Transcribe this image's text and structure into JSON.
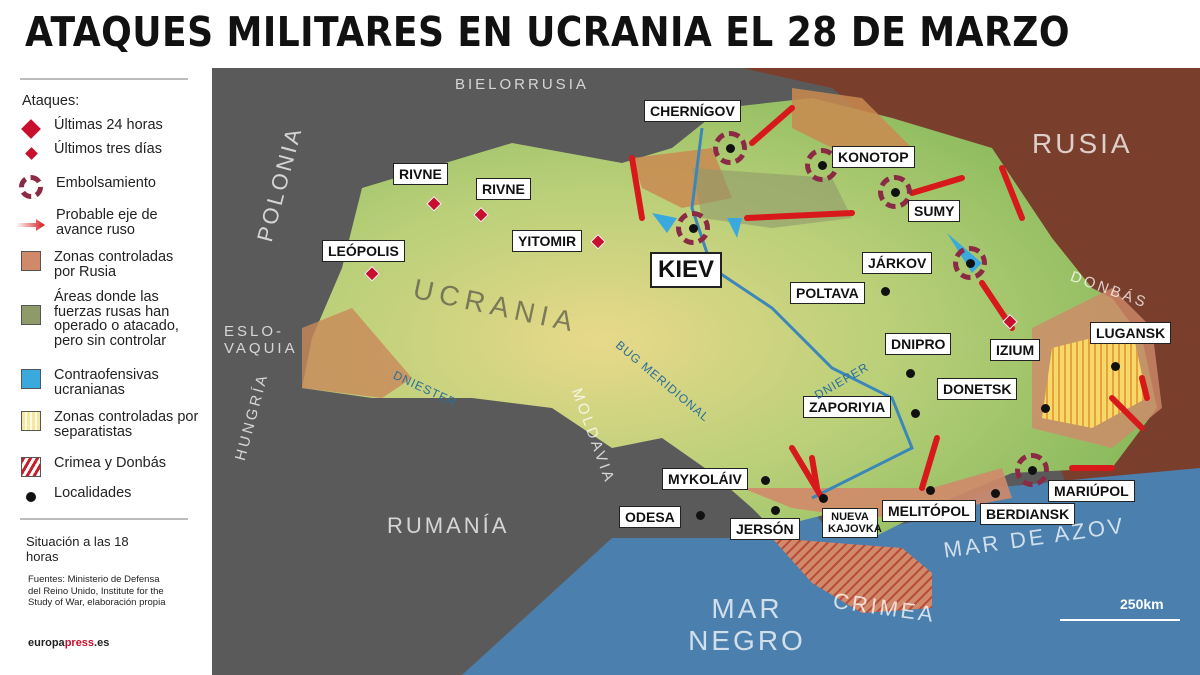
{
  "title": "ATAQUES MILITARES EN UCRANIA EL 28 DE MARZO",
  "legend": {
    "heading": "Ataques:",
    "items": [
      {
        "label": "Últimas 24 horas",
        "icon": "large-red-diamond"
      },
      {
        "label": "Últimos tres días",
        "icon": "small-red-diamond"
      },
      {
        "label": "Embolsamiento",
        "icon": "dashed-ring",
        "color": "#8a2a45"
      },
      {
        "label": "Probable eje de avance ruso",
        "icon": "red-arrow",
        "color": "#d7191c"
      },
      {
        "label": "Zonas controladas por Rusia",
        "color": "#d08a6a"
      },
      {
        "label": "Áreas donde las fuerzas rusas han operado o atacado, pero sin controlar",
        "color": "#8f9a6a"
      },
      {
        "label": "Contraofensivas ucranianas",
        "color": "#3aa9de"
      },
      {
        "label": "Zonas controladas por separatistas",
        "color": "#f6e7a0"
      },
      {
        "label": "Crimea y Donbás",
        "color": "#c8202a"
      },
      {
        "label": "Localidades",
        "icon": "black-dot"
      }
    ],
    "situation": "Situación a las 18 horas",
    "sources": "Fuentes: Ministerio de Defensa del Reino Unido, Institute for the Study of War, elaboración propia",
    "brand": {
      "a": "europa",
      "b": "press",
      ".es": ".es"
    }
  },
  "map": {
    "cities": [
      "CHERNÍGOV",
      "KONOTOP",
      "SUMY",
      "RIVNE",
      "RIVNE",
      "YITOMIR",
      "KIEV",
      "LEÓPOLIS",
      "JÁRKOV",
      "POLTAVA",
      "DNIPRO",
      "IZIUM",
      "LUGANSK",
      "DONETSK",
      "ZAPORIYIA",
      "MYKOLÁIV",
      "MARIÚPOL",
      "ODESA",
      "JERSÓN",
      "NUEVA KAJOVKA",
      "MELITÓPOL",
      "BERDIANSK"
    ],
    "regions": [
      "BIELORRUSIA",
      "RUSIA",
      "POLONIA",
      "ESLO-VAQUIA",
      "HUNGRÍA",
      "RUMANÍA",
      "MOLDAVIA",
      "UCRANIA",
      "MAR NEGRO",
      "MAR DE AZOV",
      "CRIMEA",
      "DONBÁS"
    ],
    "rivers": [
      "DNIESTER",
      "BUG MERIDIONAL",
      "DNIEPER"
    ],
    "scale": "250km",
    "colors": {
      "ukraine": "#9cc46a",
      "russia": "#7a3e2c",
      "neighbors": "#555555",
      "sea": "#4a7fae"
    }
  }
}
